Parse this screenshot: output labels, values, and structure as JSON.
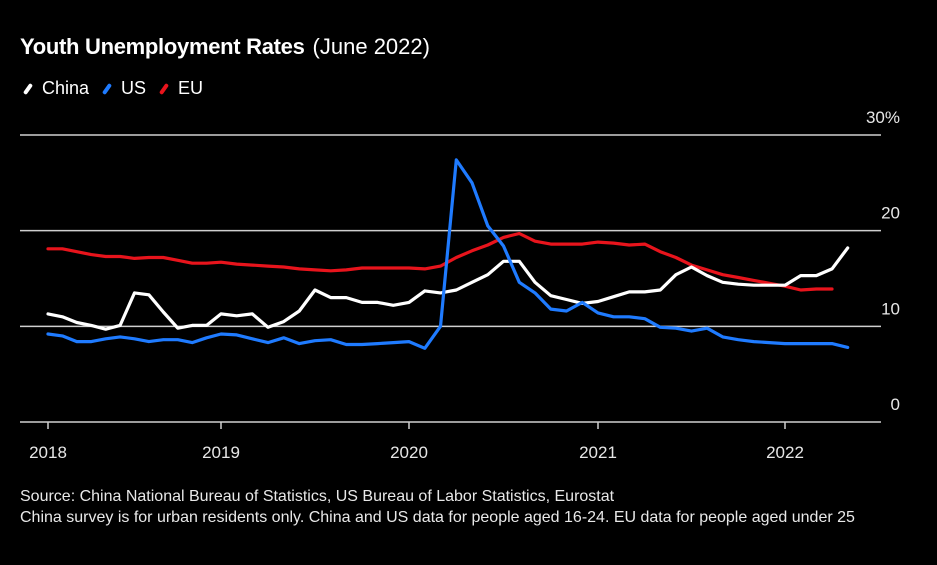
{
  "chart_data": {
    "type": "line",
    "title": "Youth Unemployment Rates",
    "subtitle": "(June 2022)",
    "xlabel": "",
    "ylabel": "",
    "ylim": [
      0,
      30
    ],
    "yticks": [
      0,
      10,
      20,
      30
    ],
    "ytick_labels": [
      "0",
      "10",
      "20",
      "30%"
    ],
    "xticks": [
      "2018",
      "2019",
      "2020",
      "2021",
      "2022"
    ],
    "x_start": "2018-01",
    "x_frequency": "monthly",
    "grid": true,
    "legend_position": "top-left",
    "series": [
      {
        "name": "China",
        "color": "#ffffff",
        "values": [
          11.3,
          11.0,
          10.4,
          10.1,
          9.7,
          10.1,
          13.5,
          13.3,
          11.5,
          9.8,
          10.1,
          10.1,
          11.3,
          11.1,
          11.3,
          9.9,
          10.5,
          11.6,
          13.8,
          13.0,
          13.0,
          12.5,
          12.5,
          12.2,
          12.5,
          13.7,
          13.5,
          13.8,
          14.6,
          15.4,
          16.8,
          16.8,
          14.6,
          13.2,
          12.8,
          12.4,
          12.6,
          13.1,
          13.6,
          13.6,
          13.8,
          15.4,
          16.2,
          15.3,
          14.6,
          14.4,
          14.3,
          14.3,
          14.3,
          15.3,
          15.3,
          16.0,
          18.2
        ]
      },
      {
        "name": "US",
        "color": "#1f7bff",
        "values": [
          9.2,
          9.0,
          8.4,
          8.4,
          8.7,
          8.9,
          8.7,
          8.4,
          8.6,
          8.6,
          8.3,
          8.8,
          9.2,
          9.1,
          8.7,
          8.3,
          8.8,
          8.2,
          8.5,
          8.6,
          8.1,
          8.1,
          8.2,
          8.3,
          8.4,
          7.7,
          10.0,
          27.4,
          25.0,
          20.5,
          18.4,
          14.6,
          13.5,
          11.8,
          11.6,
          12.5,
          11.4,
          11.0,
          11.0,
          10.8,
          9.9,
          9.8,
          9.5,
          9.8,
          8.9,
          8.6,
          8.4,
          8.3,
          8.2,
          8.2,
          8.2,
          8.2,
          7.8
        ]
      },
      {
        "name": "EU",
        "color": "#e8141c",
        "values": [
          18.1,
          18.1,
          17.8,
          17.5,
          17.3,
          17.3,
          17.1,
          17.2,
          17.2,
          16.9,
          16.6,
          16.6,
          16.7,
          16.5,
          16.4,
          16.3,
          16.2,
          16.0,
          15.9,
          15.8,
          15.9,
          16.1,
          16.1,
          16.1,
          16.1,
          16.0,
          16.3,
          17.2,
          17.9,
          18.5,
          19.3,
          19.7,
          18.9,
          18.6,
          18.6,
          18.6,
          18.8,
          18.7,
          18.5,
          18.6,
          17.8,
          17.2,
          16.4,
          15.9,
          15.4,
          15.1,
          14.8,
          14.5,
          14.2,
          13.8,
          13.9,
          13.9
        ]
      }
    ]
  },
  "footer": {
    "source": "Source: China National Bureau of Statistics, US Bureau of Labor Statistics, Eurostat",
    "note": "China survey is for urban residents only. China and US data for people aged 16-24. EU data for people aged under 25"
  }
}
